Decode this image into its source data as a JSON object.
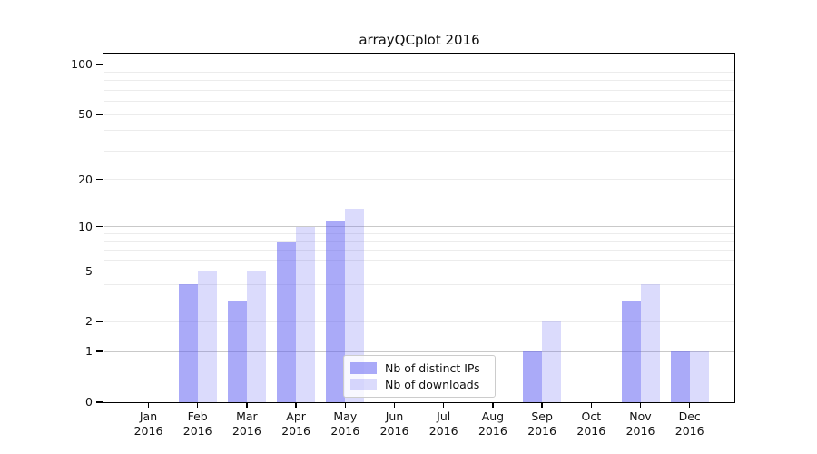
{
  "chart_data": {
    "type": "bar",
    "title": "arrayQCplot 2016",
    "y_scale": "log1p",
    "ylim": [
      0,
      116
    ],
    "grid": "horizontal",
    "legend_position": "lower-center-inside",
    "categories": [
      "Jan",
      "Feb",
      "Mar",
      "Apr",
      "May",
      "Jun",
      "Jul",
      "Aug",
      "Sep",
      "Oct",
      "Nov",
      "Dec"
    ],
    "year": "2016",
    "y_ticks": [
      0,
      1,
      2,
      5,
      10,
      20,
      50,
      100
    ],
    "major_gridlines": [
      1,
      10,
      100
    ],
    "minor_gridlines": [
      2,
      3,
      4,
      5,
      6,
      7,
      8,
      9,
      20,
      30,
      40,
      50,
      60,
      70,
      80,
      90
    ],
    "series": [
      {
        "name": "Nb of distinct IPs",
        "color": "rgba(92,92,242,0.52)",
        "values": [
          0,
          4,
          3,
          8,
          11,
          0,
          0,
          0,
          1,
          0,
          3,
          1
        ]
      },
      {
        "name": "Nb of downloads",
        "color": "rgba(92,92,242,0.22)",
        "values": [
          0,
          5,
          5,
          10,
          13,
          0,
          0,
          0,
          2,
          0,
          4,
          1
        ]
      }
    ]
  },
  "colors": {
    "background": "#ffffff",
    "axis": "#000000",
    "grid_minor": "#ececec",
    "grid_major": "#c9c9c9",
    "bar_dark_on_white": "#aaaaf8",
    "bar_light_on_white": "#dbdbfc"
  }
}
